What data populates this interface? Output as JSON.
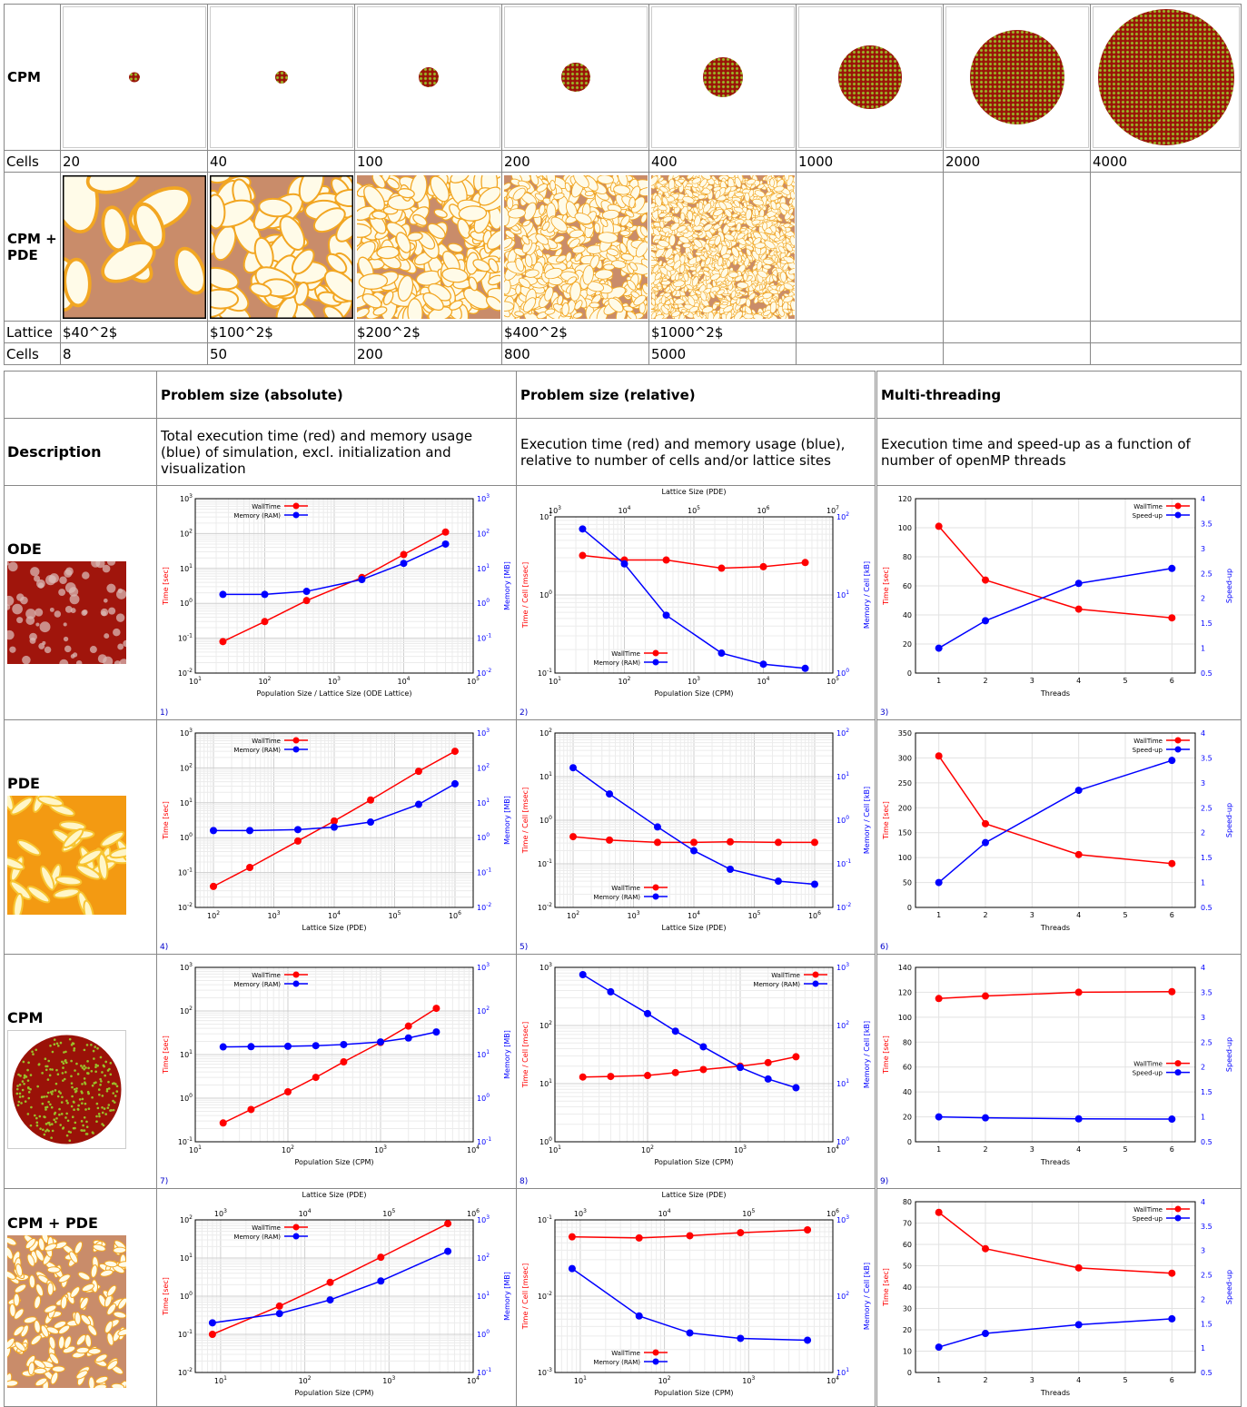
{
  "top": {
    "cpm_label": "CPM",
    "cells_label": "Cells",
    "cpm_cells": [
      "20",
      "40",
      "100",
      "200",
      "400",
      "1000",
      "2000",
      "4000"
    ],
    "cpmpde_label": "CPM + PDE",
    "lattice_label": "Lattice",
    "lattices": [
      "$40^2$",
      "$100^2$",
      "$200^2$",
      "$400^2$",
      "$1000^2$",
      "",
      "",
      ""
    ],
    "cpmpde_cells": [
      "8",
      "50",
      "200",
      "800",
      "5000",
      "",
      "",
      ""
    ]
  },
  "bottom": {
    "col_headers": [
      "Problem size (absolute)",
      "Problem size (relative)",
      "Multi-threading"
    ],
    "description_label": "Description",
    "descriptions": [
      "Total execution time (red) and memory usage (blue) of simulation, excl. initialization and visualization",
      "Execution time (red) and memory usage (blue), relative to number of cells and/or lattice sites",
      "Execution time and speed-up as a function of number of openMP threads"
    ],
    "rows": [
      "ODE",
      "PDE",
      "CPM",
      "CPM + PDE"
    ],
    "footnotes": [
      "1)",
      "2)",
      "3)",
      "4)",
      "5)",
      "6)",
      "7)",
      "8)",
      "9)"
    ]
  },
  "colors": {
    "red": "#ff0000",
    "blue": "#0000ff",
    "cpm_cell": "#9a1208",
    "cpm_spot": "#9bbf2a"
  },
  "chart_data": [
    {
      "id": "ode-abs",
      "type": "line",
      "log": true,
      "xlabel": "Population Size / Lattice Size (ODE Lattice)",
      "ylabel": "Time [sec]",
      "y2label": "Memory [MB]",
      "xlim": [
        10,
        100000
      ],
      "ylim": [
        0.01,
        1000
      ],
      "y2lim": [
        0.01,
        1000
      ],
      "legend": "top-left",
      "series": [
        {
          "name": "WallTime",
          "axis": "y",
          "x": [
            25,
            100,
            400,
            2500,
            10000,
            40000
          ],
          "y": [
            0.08,
            0.3,
            1.2,
            5.5,
            25,
            110
          ]
        },
        {
          "name": "Memory (RAM)",
          "axis": "y2",
          "x": [
            25,
            100,
            400,
            2500,
            10000,
            40000
          ],
          "y": [
            1.8,
            1.8,
            2.2,
            4.8,
            14,
            50
          ]
        }
      ]
    },
    {
      "id": "ode-rel",
      "type": "line",
      "log": true,
      "xlabel": "Population Size (CPM)",
      "x2label": "Lattice Size (PDE)",
      "ylabel": "Time / Cell [msec]",
      "y2label": "Memory / Cell [kB]",
      "xlim": [
        10,
        100000
      ],
      "ylim": [
        0.1,
        10
      ],
      "y2lim": [
        1,
        100
      ],
      "legend": "bottom-left",
      "series": [
        {
          "name": "WallTime",
          "axis": "y",
          "x": [
            25,
            100,
            400,
            2500,
            10000,
            40000
          ],
          "y": [
            3.2,
            2.8,
            2.8,
            2.2,
            2.3,
            2.6
          ]
        },
        {
          "name": "Memory (RAM)",
          "axis": "y2",
          "x": [
            25,
            100,
            400,
            2500,
            10000,
            40000
          ],
          "y": [
            70,
            25,
            5.5,
            1.8,
            1.3,
            1.15
          ]
        }
      ]
    },
    {
      "id": "ode-thr",
      "type": "line",
      "log": false,
      "xlabel": "Threads",
      "ylabel": "Time [sec]",
      "y2label": "Speed-up",
      "xlim": [
        0.5,
        6.5
      ],
      "ylim": [
        0,
        120
      ],
      "y2lim": [
        0.5,
        4
      ],
      "xticks": [
        1,
        2,
        3,
        4,
        5,
        6
      ],
      "yticks": [
        0,
        20,
        40,
        60,
        80,
        100,
        120
      ],
      "y2ticks": [
        0.5,
        1,
        1.5,
        2,
        2.5,
        3,
        3.5,
        4
      ],
      "legend": "top-right",
      "series": [
        {
          "name": "WallTime",
          "axis": "y",
          "x": [
            1,
            2,
            4,
            6
          ],
          "y": [
            101,
            64,
            44,
            38
          ]
        },
        {
          "name": "Speed-up",
          "axis": "y2",
          "x": [
            1,
            2,
            4,
            6
          ],
          "y": [
            1,
            1.55,
            2.3,
            2.6
          ]
        }
      ]
    },
    {
      "id": "pde-abs",
      "type": "line",
      "log": true,
      "xlabel": "Lattice Size (PDE)",
      "ylabel": "Time [sec]",
      "y2label": "Memory [MB]",
      "xlim": [
        50,
        2000000
      ],
      "ylim": [
        0.01,
        1000
      ],
      "y2lim": [
        0.01,
        1000
      ],
      "legend": "top-left",
      "series": [
        {
          "name": "WallTime",
          "axis": "y",
          "x": [
            100,
            400,
            2500,
            10000,
            40000,
            250000,
            1000000
          ],
          "y": [
            0.04,
            0.14,
            0.8,
            3.0,
            12,
            80,
            300
          ]
        },
        {
          "name": "Memory (RAM)",
          "axis": "y2",
          "x": [
            100,
            400,
            2500,
            10000,
            40000,
            250000,
            1000000
          ],
          "y": [
            1.6,
            1.6,
            1.7,
            2.0,
            2.8,
            9,
            35
          ]
        }
      ]
    },
    {
      "id": "pde-rel",
      "type": "line",
      "log": true,
      "xlabel": "Lattice Size (PDE)",
      "ylabel": "Time / Cell [msec]",
      "y2label": "Memory / Cell [kB]",
      "xlim": [
        50,
        2000000
      ],
      "ylim": [
        0.01,
        100
      ],
      "y2lim": [
        0.01,
        100
      ],
      "legend": "bottom-left",
      "series": [
        {
          "name": "WallTime",
          "axis": "y",
          "x": [
            100,
            400,
            2500,
            10000,
            40000,
            250000,
            1000000
          ],
          "y": [
            0.42,
            0.35,
            0.31,
            0.31,
            0.32,
            0.31,
            0.31
          ]
        },
        {
          "name": "Memory (RAM)",
          "axis": "y2",
          "x": [
            100,
            400,
            2500,
            10000,
            40000,
            250000,
            1000000
          ],
          "y": [
            16,
            4,
            0.7,
            0.2,
            0.075,
            0.04,
            0.034
          ]
        }
      ]
    },
    {
      "id": "pde-thr",
      "type": "line",
      "log": false,
      "xlabel": "Threads",
      "ylabel": "Time [sec]",
      "y2label": "Speed-up",
      "xlim": [
        0.5,
        6.5
      ],
      "ylim": [
        0,
        350
      ],
      "y2lim": [
        0.5,
        4
      ],
      "xticks": [
        1,
        2,
        3,
        4,
        5,
        6
      ],
      "yticks": [
        0,
        50,
        100,
        150,
        200,
        250,
        300,
        350
      ],
      "y2ticks": [
        0.5,
        1,
        1.5,
        2,
        2.5,
        3,
        3.5,
        4
      ],
      "legend": "top-right",
      "series": [
        {
          "name": "WallTime",
          "axis": "y",
          "x": [
            1,
            2,
            4,
            6
          ],
          "y": [
            304,
            168,
            106,
            88
          ]
        },
        {
          "name": "Speed-up",
          "axis": "y2",
          "x": [
            1,
            2,
            4,
            6
          ],
          "y": [
            1,
            1.8,
            2.85,
            3.45
          ]
        }
      ]
    },
    {
      "id": "cpm-abs",
      "type": "line",
      "log": true,
      "xlabel": "Population Size (CPM)",
      "ylabel": "Time [sec]",
      "y2label": "Memory [MB]",
      "xlim": [
        10,
        10000
      ],
      "ylim": [
        0.1,
        1000
      ],
      "y2lim": [
        0.1,
        1000
      ],
      "legend": "top-left",
      "series": [
        {
          "name": "WallTime",
          "axis": "y",
          "x": [
            20,
            40,
            100,
            200,
            400,
            1000,
            2000,
            4000
          ],
          "y": [
            0.27,
            0.55,
            1.4,
            3.0,
            6.8,
            19,
            45,
            115
          ]
        },
        {
          "name": "Memory (RAM)",
          "axis": "y2",
          "x": [
            20,
            40,
            100,
            200,
            400,
            1000,
            2000,
            4000
          ],
          "y": [
            15,
            15.2,
            15.5,
            16,
            17,
            19.5,
            24,
            33
          ]
        }
      ]
    },
    {
      "id": "cpm-rel",
      "type": "line",
      "log": true,
      "xlabel": "Population Size (CPM)",
      "ylabel": "Time / Cell [msec]",
      "y2label": "Memory / Cell [kB]",
      "xlim": [
        10,
        10000
      ],
      "ylim": [
        1,
        1000
      ],
      "y2lim": [
        1,
        1000
      ],
      "legend": "top-right",
      "series": [
        {
          "name": "WallTime",
          "axis": "y",
          "x": [
            20,
            40,
            100,
            200,
            400,
            1000,
            2000,
            4000
          ],
          "y": [
            13,
            13.3,
            13.8,
            15.5,
            17.5,
            20,
            23,
            29
          ]
        },
        {
          "name": "Memory (RAM)",
          "axis": "y2",
          "x": [
            20,
            40,
            100,
            200,
            400,
            1000,
            2000,
            4000
          ],
          "y": [
            750,
            380,
            160,
            80,
            43,
            19,
            12,
            8.5
          ]
        }
      ]
    },
    {
      "id": "cpm-thr",
      "type": "line",
      "log": false,
      "xlabel": "Threads",
      "ylabel": "Time [sec]",
      "y2label": "Speed-up",
      "xlim": [
        0.5,
        6.5
      ],
      "ylim": [
        0,
        140
      ],
      "y2lim": [
        0.5,
        4
      ],
      "xticks": [
        1,
        2,
        3,
        4,
        5,
        6
      ],
      "yticks": [
        0,
        20,
        40,
        60,
        80,
        100,
        120,
        140
      ],
      "y2ticks": [
        0.5,
        1,
        1.5,
        2,
        2.5,
        3,
        3.5,
        4
      ],
      "legend": "middle-right",
      "series": [
        {
          "name": "WallTime",
          "axis": "y",
          "x": [
            1,
            2,
            4,
            6
          ],
          "y": [
            115,
            117,
            120,
            120.5
          ]
        },
        {
          "name": "Speed-up",
          "axis": "y2",
          "x": [
            1,
            2,
            4,
            6
          ],
          "y": [
            1,
            0.98,
            0.96,
            0.955
          ]
        }
      ]
    },
    {
      "id": "cpmpde-abs",
      "type": "line",
      "log": true,
      "xlabel": "Population Size (CPM)",
      "x2label": "Lattice Size (PDE)",
      "ylabel": "Time [sec]",
      "y2label": "Memory [MB]",
      "xlim": [
        5,
        10000
      ],
      "ylim": [
        0.01,
        100
      ],
      "y2lim": [
        0.1,
        1000
      ],
      "legend": "top-left",
      "series": [
        {
          "name": "WallTime",
          "axis": "y",
          "x": [
            8,
            50,
            200,
            800,
            5000
          ],
          "y": [
            0.1,
            0.55,
            2.3,
            10.5,
            80
          ]
        },
        {
          "name": "Memory (RAM)",
          "axis": "y2",
          "x": [
            8,
            50,
            200,
            800,
            5000
          ],
          "y": [
            2,
            3.5,
            8,
            25,
            150
          ]
        }
      ]
    },
    {
      "id": "cpmpde-rel",
      "type": "line",
      "log": true,
      "xlabel": "Population Size (CPM)",
      "x2label": "Lattice Size (PDE)",
      "ylabel": "Time / Cell [msec]",
      "y2label": "Memory / Cell [kB]",
      "xlim": [
        5,
        10000
      ],
      "ylim": [
        0.001,
        0.1
      ],
      "y2lim": [
        10,
        1000
      ],
      "legend": "bottom-left",
      "series": [
        {
          "name": "WallTime",
          "axis": "y",
          "x": [
            8,
            50,
            200,
            800,
            5000
          ],
          "y": [
            0.06,
            0.058,
            0.062,
            0.068,
            0.074
          ]
        },
        {
          "name": "Memory (RAM)",
          "axis": "y2",
          "x": [
            8,
            50,
            200,
            800,
            5000
          ],
          "y": [
            230,
            55,
            33,
            28,
            26.5
          ]
        }
      ]
    },
    {
      "id": "cpmpde-thr",
      "type": "line",
      "log": false,
      "xlabel": "Threads",
      "ylabel": "Time [sec]",
      "y2label": "Speed-up",
      "xlim": [
        0.5,
        6.5
      ],
      "ylim": [
        0,
        80
      ],
      "y2lim": [
        0.5,
        4
      ],
      "xticks": [
        1,
        2,
        3,
        4,
        5,
        6
      ],
      "yticks": [
        0,
        10,
        20,
        30,
        40,
        50,
        60,
        70,
        80
      ],
      "y2ticks": [
        0.5,
        1,
        1.5,
        2,
        2.5,
        3,
        3.5,
        4
      ],
      "legend": "top-right",
      "series": [
        {
          "name": "WallTime",
          "axis": "y",
          "x": [
            1,
            2,
            4,
            6
          ],
          "y": [
            75,
            58,
            49,
            46.5
          ]
        },
        {
          "name": "Speed-up",
          "axis": "y2",
          "x": [
            1,
            2,
            4,
            6
          ],
          "y": [
            1.02,
            1.3,
            1.48,
            1.6
          ]
        }
      ]
    }
  ]
}
